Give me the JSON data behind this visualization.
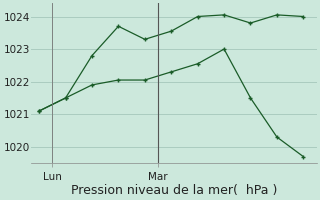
{
  "background_color": "#cce8dc",
  "plot_bg_color": "#cce8dc",
  "grid_color": "#aaccc0",
  "line_color": "#1a5c28",
  "marker_color": "#1a5c28",
  "ylabel_ticks": [
    1020,
    1021,
    1022,
    1023,
    1024
  ],
  "xlabel": "Pression niveau de la mer(  hPa )",
  "xlabel_fontsize": 9,
  "tick_fontsize": 7.5,
  "figsize": [
    3.2,
    2.0
  ],
  "dpi": 100,
  "lun_x": 0.5,
  "mar_x": 4.5,
  "line1_x": [
    0,
    1,
    2,
    3,
    4,
    5,
    6,
    7,
    8,
    9,
    10
  ],
  "line1_y": [
    1021.1,
    1021.5,
    1022.8,
    1023.7,
    1023.3,
    1023.55,
    1024.0,
    1024.05,
    1023.8,
    1024.05,
    1024.0
  ],
  "line2_x": [
    0,
    1,
    2,
    3,
    4,
    5,
    6,
    7,
    8,
    9,
    10
  ],
  "line2_y": [
    1021.1,
    1021.5,
    1021.9,
    1022.05,
    1022.05,
    1022.3,
    1022.55,
    1023.0,
    1021.5,
    1020.3,
    1019.7
  ],
  "ylim": [
    1019.5,
    1024.4
  ],
  "xlim": [
    -0.3,
    10.5
  ]
}
